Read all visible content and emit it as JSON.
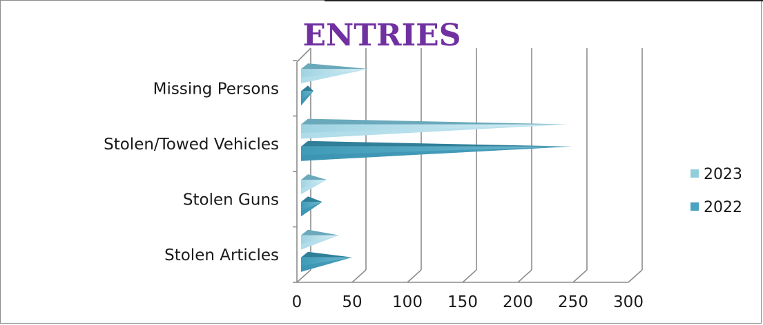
{
  "chart_data": {
    "type": "bar",
    "orientation": "horizontal",
    "title": "ENTRIES",
    "categories": [
      "Missing Persons",
      "Stolen/Towed Vehicles",
      "Stolen Guns",
      "Stolen Articles"
    ],
    "series": [
      {
        "name": "2023",
        "values": [
          65,
          245,
          27,
          38
        ],
        "color": "#92cddc"
      },
      {
        "name": "2022",
        "values": [
          15,
          249,
          23,
          50
        ],
        "color": "#4aa3bf"
      }
    ],
    "xlim": [
      0,
      300
    ],
    "xticks": [
      "0",
      "50",
      "100",
      "150",
      "200",
      "250",
      "300"
    ],
    "grid": true,
    "legend_position": "right"
  },
  "colors": {
    "title": "#7030a0",
    "grid": "#8c8c8c"
  }
}
